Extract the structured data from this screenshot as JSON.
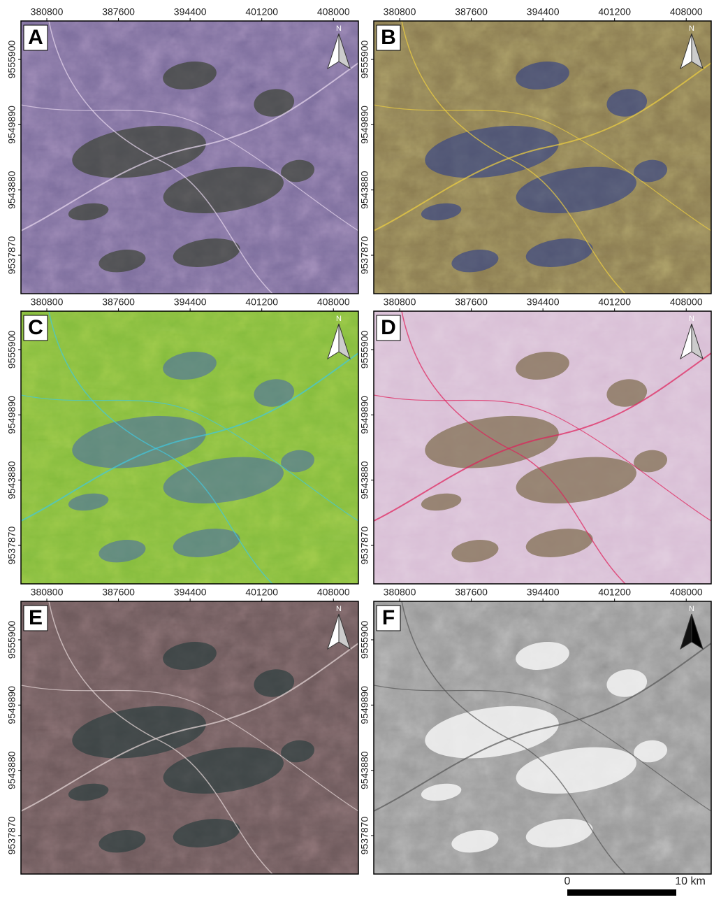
{
  "panels": [
    {
      "label": "A"
    },
    {
      "label": "B"
    },
    {
      "label": "C"
    },
    {
      "label": "D"
    },
    {
      "label": "E"
    },
    {
      "label": "F"
    }
  ],
  "xticks": [
    380800,
    387600,
    394400,
    401200,
    408000
  ],
  "yticks": [
    9555900,
    9549890,
    9543880,
    9537870
  ],
  "xlim": [
    378345,
    410370
  ],
  "ylim": [
    9534330,
    9559440
  ],
  "north_label": "N",
  "scale_bar": {
    "labels": [
      "0",
      "10 km"
    ]
  }
}
